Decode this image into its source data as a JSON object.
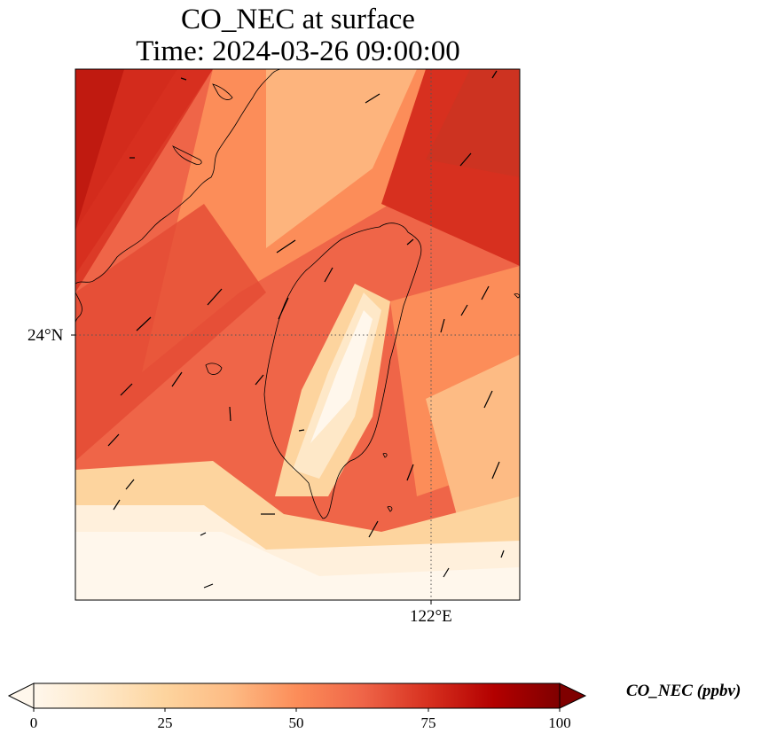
{
  "title": {
    "line1": "CO_NEC at surface",
    "line2": "Time: 2024-03-26 09:00:00"
  },
  "axes": {
    "lat_tick_label": "24°N",
    "lon_tick_label": "122°E"
  },
  "map": {
    "projection": "lat-lon",
    "gridlines": "dotted",
    "field": "CO_NEC",
    "level": "surface",
    "wind_vectors": true,
    "coastline_color": "#000000"
  },
  "colorbar": {
    "label": "CO_NEC (ppbv)",
    "colormap": "OrRd",
    "min": 0,
    "max": 100,
    "extend": "both",
    "ticks": [
      "0",
      "25",
      "50",
      "75",
      "100"
    ],
    "colors": [
      "#fff7ec",
      "#fee8c8",
      "#fdd49e",
      "#fdbb84",
      "#fc8d59",
      "#ef6548",
      "#d7301f",
      "#b30000",
      "#7f0000"
    ]
  }
}
